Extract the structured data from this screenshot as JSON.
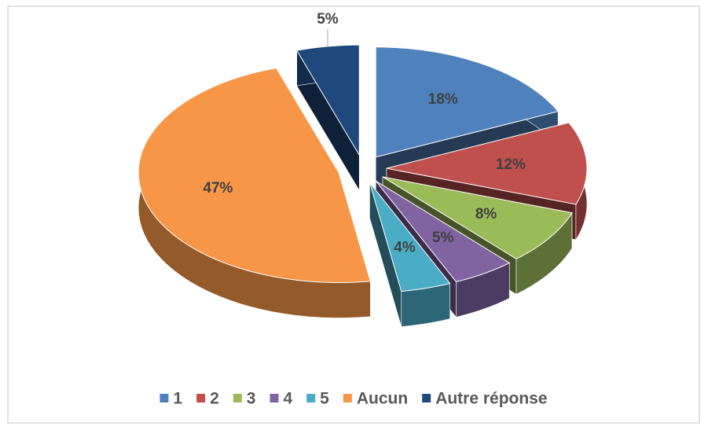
{
  "chart_data": {
    "type": "pie3d",
    "categories": [
      "1",
      "2",
      "3",
      "4",
      "5",
      "Aucun",
      "Autre réponse"
    ],
    "values": [
      18,
      12,
      8,
      5,
      4,
      47,
      5
    ],
    "value_labels": [
      "18%",
      "12%",
      "8%",
      "5%",
      "4%",
      "47%",
      "5%"
    ],
    "colors": [
      "#4f81bd",
      "#c0504d",
      "#9bbb59",
      "#8064a2",
      "#4bacc6",
      "#f79646",
      "#1f497d"
    ],
    "legend": "bottom"
  }
}
